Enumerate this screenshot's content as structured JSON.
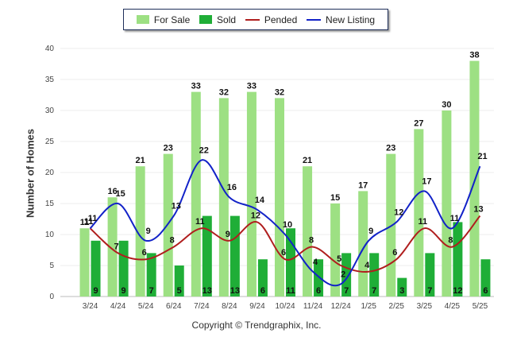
{
  "chart_data": {
    "type": "bar",
    "categories": [
      "3/24",
      "4/24",
      "5/24",
      "6/24",
      "7/24",
      "8/24",
      "9/24",
      "10/24",
      "11/24",
      "12/24",
      "1/25",
      "2/25",
      "3/25",
      "4/25",
      "5/25"
    ],
    "series": [
      {
        "name": "For Sale",
        "kind": "bar",
        "color": "#9de083",
        "values": [
          11,
          16,
          21,
          23,
          33,
          32,
          33,
          32,
          21,
          15,
          17,
          23,
          27,
          30,
          38
        ]
      },
      {
        "name": "Sold",
        "kind": "bar",
        "color": "#1fae37",
        "values": [
          9,
          9,
          7,
          5,
          13,
          13,
          6,
          11,
          6,
          7,
          7,
          3,
          7,
          12,
          6
        ]
      },
      {
        "name": "Pended",
        "kind": "line",
        "color": "#b01e1e",
        "values": [
          11,
          7,
          6,
          8,
          11,
          9,
          12,
          6,
          8,
          5,
          4,
          6,
          11,
          8,
          13
        ]
      },
      {
        "name": "New Listing",
        "kind": "line",
        "color": "#1222c8",
        "values": [
          11,
          15,
          9,
          13,
          22,
          16,
          14,
          10,
          4,
          2,
          9,
          12,
          17,
          11,
          21
        ]
      }
    ],
    "ylabel": "Number of Homes",
    "xlabel": "",
    "ylim": [
      0,
      40
    ],
    "yticks": [
      0,
      5,
      10,
      15,
      20,
      25,
      30,
      35,
      40
    ],
    "legend": "top-center",
    "grid": true
  },
  "footer": {
    "copyright": "Copyright © Trendgraphix, Inc."
  }
}
